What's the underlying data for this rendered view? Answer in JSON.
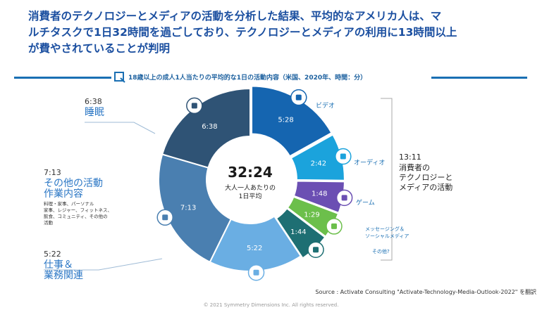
{
  "headline": [
    "消費者のテクノロジーとメディアの活動を分析した結果、平均的なアメリカ人は、マ",
    "ルチタスクで1日32時間を過ごしており、テクノロジーとメディアの利用に13時間以上",
    "が費やされていることが判明"
  ],
  "subtitle": "18歳以上の成人1人当たりの平均的な1日の活動内容（米国、2020年、時間：分）",
  "center": {
    "total": "32:24",
    "line1": "大人一人あたりの",
    "line2": "1日平均"
  },
  "left_labels": {
    "sleep": {
      "time": "6:38",
      "name": "睡眠"
    },
    "other": {
      "time": "7:13",
      "name1": "その他の活動",
      "name2": "作業内容",
      "detail1": "料理・家事、パーソナル",
      "detail2": "家事、レジャー、フィットネス、",
      "detail3": "飲食、コミュニティ、その他の",
      "detail4": "活動"
    },
    "work": {
      "time": "5:22",
      "name1": "仕事＆",
      "name2": "業務関連"
    }
  },
  "right_labels": {
    "video": "ビデオ",
    "audio": "オーディオ",
    "game": "ゲーム",
    "messaging1": "メッセージング＆",
    "messaging2": "ソーシャルメディア",
    "other_media": "その他?"
  },
  "consumer": {
    "time": "13:11",
    "line1": "消費者の",
    "line2": "テクノロジーと",
    "line3": "メディアの活動"
  },
  "source": "Source : Activate Consulting \"Activate-Technology-Media-Outlook-2022\" を翻訳",
  "copyright": "© 2021 Symmetry Dimensions Inc. All rights reserved.",
  "chart_data": {
    "type": "pie",
    "title": "18歳以上の成人1人当たりの平均的な1日の活動内容（米国、2020年、時間：分）",
    "total_label": "32:24",
    "slices": [
      {
        "name": "ビデオ",
        "label": "5:28",
        "value": 328,
        "color": "#1565b0",
        "group": "media"
      },
      {
        "name": "オーディオ",
        "label": "2:42",
        "value": 162,
        "color": "#1ba3dc",
        "group": "media"
      },
      {
        "name": "ゲーム",
        "label": "1:48",
        "value": 108,
        "color": "#6b4fb3",
        "group": "media"
      },
      {
        "name": "メッセージング＆ソーシャルメディア",
        "label": "1:29",
        "value": 89,
        "color": "#6cbf4b",
        "group": "media"
      },
      {
        "name": "その他?",
        "label": "1:44",
        "value": 104,
        "color": "#1e6f73",
        "group": "media"
      },
      {
        "name": "仕事＆業務関連",
        "label": "5:22",
        "value": 322,
        "color": "#6aaee3",
        "group": "other"
      },
      {
        "name": "その他の活動作業内容",
        "label": "7:13",
        "value": 433,
        "color": "#4a7fb0",
        "group": "other"
      },
      {
        "name": "睡眠",
        "label": "6:38",
        "value": 398,
        "color": "#2f5375",
        "group": "other"
      }
    ]
  }
}
